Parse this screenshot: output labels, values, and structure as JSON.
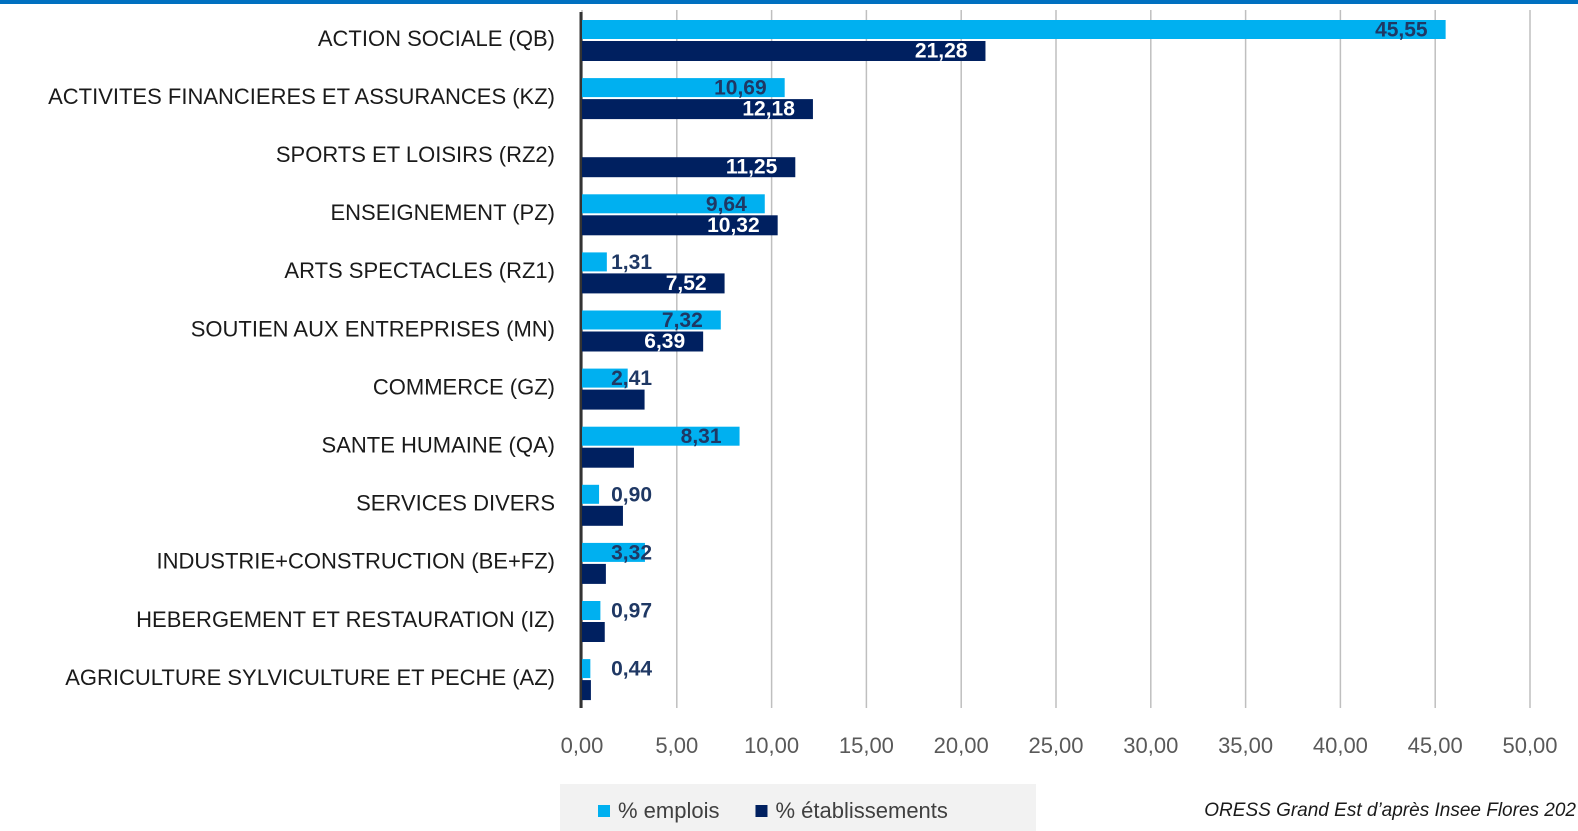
{
  "chart_data": {
    "type": "bar",
    "orientation": "horizontal",
    "categories": [
      "ACTION SOCIALE (QB)",
      "ACTIVITES FINANCIERES ET ASSURANCES (KZ)",
      "SPORTS ET LOISIRS (RZ2)",
      "ENSEIGNEMENT (PZ)",
      "ARTS SPECTACLES (RZ1)",
      "SOUTIEN AUX ENTREPRISES (MN)",
      "COMMERCE (GZ)",
      "SANTE HUMAINE (QA)",
      "SERVICES DIVERS",
      "INDUSTRIE+CONSTRUCTION (BE+FZ)",
      "HEBERGEMENT ET RESTAURATION (IZ)",
      "AGRICULTURE SYLVICULTURE ET PECHE (AZ)"
    ],
    "series": [
      {
        "name": "% emplois",
        "color": "#00b0f0",
        "values": [
          45.55,
          10.69,
          null,
          9.64,
          1.31,
          7.32,
          2.41,
          8.31,
          0.9,
          3.32,
          0.97,
          0.44
        ],
        "value_labels": [
          "45,55",
          "10,69",
          null,
          "9,64",
          "1,31",
          "7,32",
          "2,41",
          "8,31",
          "0,90",
          "3,32",
          "0,97",
          "0,44"
        ]
      },
      {
        "name": "% établissements",
        "color": "#002060",
        "values": [
          21.28,
          12.18,
          11.25,
          10.32,
          7.52,
          6.39,
          3.3,
          2.74,
          2.16,
          1.26,
          1.2,
          0.47
        ],
        "value_labels": [
          "21,28",
          "12,18",
          "11,25",
          "10,32",
          "7,52",
          "6,39",
          null,
          null,
          null,
          null,
          null,
          null
        ]
      }
    ],
    "xlim": [
      0,
      50
    ],
    "xticks": [
      {
        "value": 0,
        "label": "0,00"
      },
      {
        "value": 5,
        "label": "5,00"
      },
      {
        "value": 10,
        "label": "10,00"
      },
      {
        "value": 15,
        "label": "15,00"
      },
      {
        "value": 20,
        "label": "20,00"
      },
      {
        "value": 25,
        "label": "25,00"
      },
      {
        "value": 30,
        "label": "30,00"
      },
      {
        "value": 35,
        "label": "35,00"
      },
      {
        "value": 40,
        "label": "40,00"
      },
      {
        "value": 45,
        "label": "45,00"
      },
      {
        "value": 50,
        "label": "50,00"
      }
    ],
    "grid": true,
    "legend": "bottom",
    "source": "ORESS Grand Est d’après Insee Flores 202"
  }
}
